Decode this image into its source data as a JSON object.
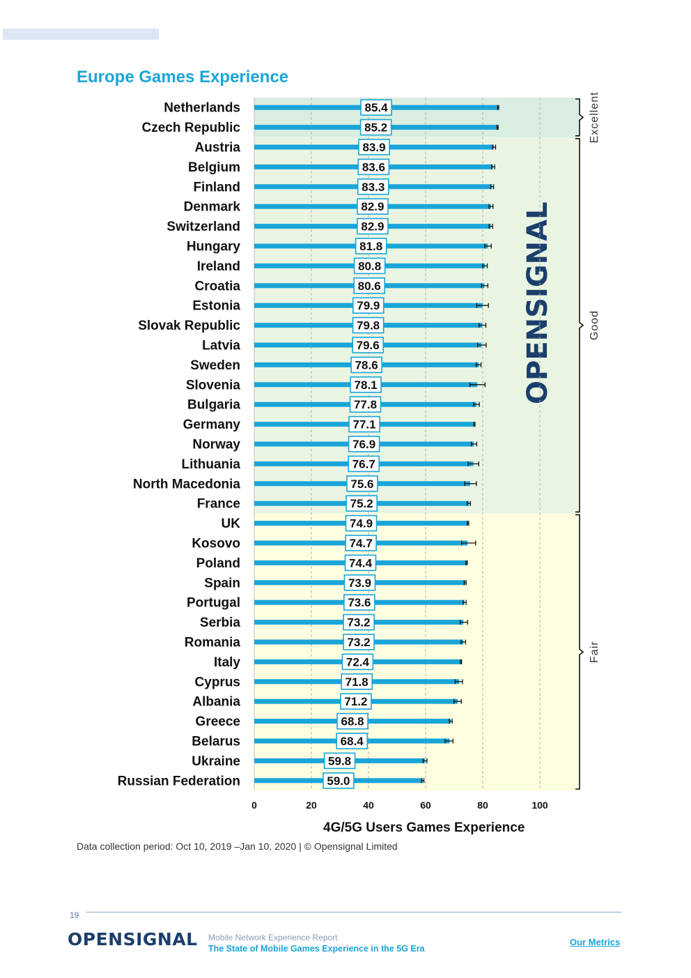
{
  "page": {
    "title": "Europe Games Experience",
    "caption": "Data collection period: Oct 10, 2019 –Jan 10, 2020 | © Opensignal Limited",
    "page_number": "19",
    "footer": {
      "logo_text": "OPENSIGNAL",
      "report_name": "Mobile Network Experience Report",
      "report_subtitle": "The State of Mobile Games Experience in the 5G Era",
      "link_label": "Our Metrics"
    },
    "watermark": "OPENSIGNAL"
  },
  "colors": {
    "bar": "#1aa5d8",
    "title": "#1aa5d8",
    "label_border": "#1aa5d8",
    "excellent_band": "#d9ede0",
    "good_band": "#e9f5e2",
    "fair_band": "#fdfde0",
    "logo_dark": "#1b3f6b"
  },
  "chart_data": {
    "type": "bar",
    "orientation": "horizontal",
    "xlabel": "4G/5G Users Games Experience",
    "ylabel": "",
    "xlim": [
      0,
      114
    ],
    "xticks": [
      0,
      20,
      40,
      60,
      80,
      100
    ],
    "grid": "dashed vertical gridlines at 20, 40, 60, 80, 100",
    "categories": [
      "Netherlands",
      "Czech Republic",
      "Austria",
      "Belgium",
      "Finland",
      "Denmark",
      "Switzerland",
      "Hungary",
      "Ireland",
      "Croatia",
      "Estonia",
      "Slovak Republic",
      "Latvia",
      "Sweden",
      "Slovenia",
      "Bulgaria",
      "Germany",
      "Norway",
      "Lithuania",
      "North Macedonia",
      "France",
      "UK",
      "Kosovo",
      "Poland",
      "Spain",
      "Portugal",
      "Serbia",
      "Romania",
      "Italy",
      "Cyprus",
      "Albania",
      "Greece",
      "Belarus",
      "Ukraine",
      "Russian Federation"
    ],
    "values": [
      85.4,
      85.2,
      83.9,
      83.6,
      83.3,
      82.9,
      82.9,
      81.8,
      80.8,
      80.6,
      79.9,
      79.8,
      79.6,
      78.6,
      78.1,
      77.8,
      77.1,
      76.9,
      76.7,
      75.6,
      75.2,
      74.9,
      74.7,
      74.4,
      73.9,
      73.6,
      73.2,
      73.2,
      72.4,
      71.8,
      71.2,
      68.8,
      68.4,
      59.8,
      59.0
    ],
    "value_labels": [
      "85.4",
      "85.2",
      "83.9",
      "83.6",
      "83.3",
      "82.9",
      "82.9",
      "81.8",
      "80.8",
      "80.6",
      "79.9",
      "79.8",
      "79.6",
      "78.6",
      "78.1",
      "77.8",
      "77.1",
      "76.9",
      "76.7",
      "75.6",
      "75.2",
      "74.9",
      "74.7",
      "74.4",
      "73.9",
      "73.6",
      "73.2",
      "73.2",
      "72.4",
      "71.8",
      "71.2",
      "68.8",
      "68.4",
      "59.8",
      "59.0"
    ],
    "error_bars": {
      "lower": [
        85.2,
        85.0,
        83.4,
        83.1,
        82.8,
        82.2,
        82.2,
        80.7,
        80.0,
        79.6,
        77.9,
        78.7,
        78.2,
        77.7,
        75.5,
        76.8,
        76.9,
        76.0,
        74.9,
        73.7,
        74.6,
        74.6,
        72.6,
        74.1,
        73.5,
        73.1,
        72.1,
        72.4,
        72.2,
        70.3,
        69.9,
        68.3,
        66.8,
        59.1,
        58.6
      ],
      "upper": [
        85.6,
        85.4,
        84.5,
        84.2,
        83.8,
        83.6,
        83.5,
        83.0,
        81.6,
        81.8,
        82.0,
        81.1,
        81.2,
        79.4,
        80.8,
        78.8,
        77.3,
        77.9,
        78.6,
        77.8,
        75.7,
        75.1,
        77.5,
        74.6,
        74.2,
        74.2,
        74.7,
        74.0,
        72.6,
        72.9,
        72.5,
        69.3,
        69.6,
        60.5,
        59.4
      ]
    },
    "bands": [
      {
        "label": "Excellent",
        "from_category": "Netherlands",
        "to_category": "Czech Republic",
        "x_from": 0,
        "x_to": 114
      },
      {
        "label": "Good",
        "from_category": "Austria",
        "to_category": "France",
        "x_from": 0,
        "x_to": 114
      },
      {
        "label": "Fair",
        "from_category": "UK",
        "to_category": "Russian Federation",
        "x_from": 0,
        "x_to": 114
      }
    ]
  }
}
